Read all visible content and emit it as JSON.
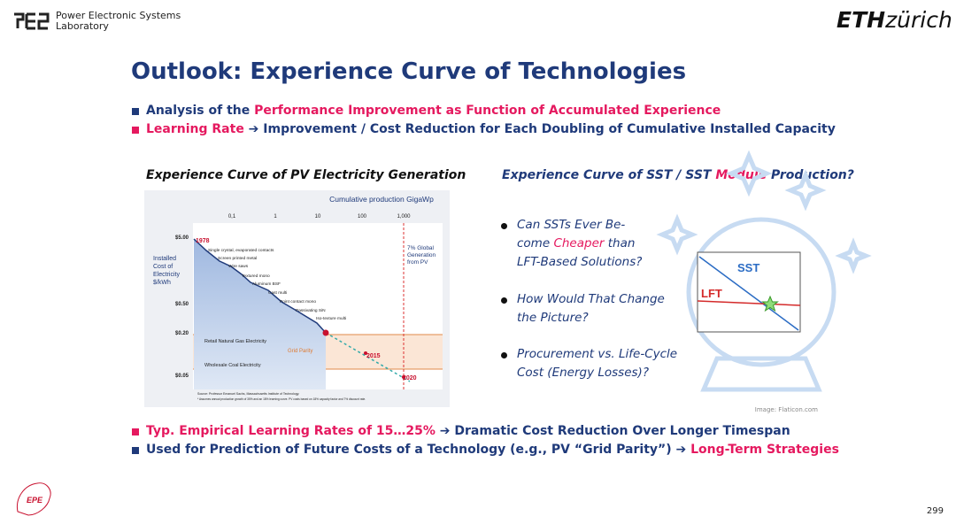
{
  "header": {
    "org_line1": "Power Electronic Systems",
    "org_line2": "Laboratory",
    "eth": "ETH",
    "zurich": "zürich"
  },
  "title": "Outlook: Experience Curve of Technologies",
  "bullets_top": [
    [
      {
        "text": "Analysis of the ",
        "highlight": false
      },
      {
        "text": "Performance Improvement as Function of Accumulated Experience",
        "highlight": true
      }
    ],
    [
      {
        "text": "Learning Rate",
        "highlight": true
      },
      {
        "text": " ➔ Improvement / Cost Reduction for Each Doubling of Cumulative Installed Capacity",
        "highlight": false
      }
    ]
  ],
  "left_figure": {
    "title": "Experience Curve of PV Electricity Generation",
    "x_title": "Cumulative production GigaWp",
    "x_ticks": [
      "0,1",
      "1",
      "10",
      "100",
      "1,000"
    ],
    "y_title": [
      "Installed",
      "Cost of",
      "Electricity",
      "$/kWh"
    ],
    "y_ticks": [
      "$5.00",
      "$0.50",
      "$0.20",
      "$0.05"
    ],
    "years": [
      "1978",
      "2015",
      "2020"
    ],
    "technologies": [
      "Single crystal, evaporated contacts",
      "Screen printed metal",
      "Wire saws",
      "Textured mono",
      "Aluminum BSF",
      "Cast multi",
      "Point contact mono",
      "Passivating SiN",
      "Iso-texture multi"
    ],
    "bands": [
      "Retail Natural Gas Electricity",
      "Grid Parity",
      "Wholesale Coal Electricity"
    ],
    "note": [
      "7% Global",
      "Generation",
      "from PV"
    ],
    "source": "Source: Professor Emanuel Sachs, Massachusetts Institute of Technology.",
    "footnote": "* Assumes annual production growth of 35% and an 18% learning curve. PV costs based on 18% capacity factor and 7% discount rate."
  },
  "right_figure": {
    "title": [
      {
        "text": "Experience Curve of SST / SST ",
        "highlight": false
      },
      {
        "text": "Module",
        "highlight": true
      },
      {
        "text": " Production?",
        "highlight": false
      }
    ],
    "bullets": [
      [
        [
          {
            "text": "Can SSTs Ever Be-",
            "highlight": false
          }
        ],
        [
          {
            "text": "come ",
            "highlight": false
          },
          {
            "text": "Cheaper",
            "highlight": true
          },
          {
            "text": " than",
            "highlight": false
          }
        ],
        [
          {
            "text": "LFT-Based Solutions?",
            "highlight": false
          }
        ]
      ],
      [
        [
          {
            "text": "How Would That Change",
            "highlight": false
          }
        ],
        [
          {
            "text": "the Picture?",
            "highlight": false
          }
        ]
      ],
      [
        [
          {
            "text": "Procurement vs. Life-Cycle",
            "highlight": false
          }
        ],
        [
          {
            "text": "Cost (Energy Losses)?",
            "highlight": false
          }
        ]
      ]
    ],
    "sst": "SST",
    "lft": "LFT",
    "credit": "Image: Flaticon.com"
  },
  "bullets_bottom": [
    [
      {
        "text": "Typ. Empirical Learning Rates of 15…25%",
        "highlight": true
      },
      {
        "text": " ➔ Dramatic Cost Reduction Over Longer Timespan",
        "highlight": false
      }
    ],
    [
      {
        "text": "Used for Prediction of Future Costs of a Technology (e.g., PV “Grid Parity”) ➔ ",
        "highlight": false
      },
      {
        "text": "Long-Term Strategies",
        "highlight": true
      }
    ]
  ],
  "footer": {
    "logo": "EPE",
    "page": "299"
  }
}
